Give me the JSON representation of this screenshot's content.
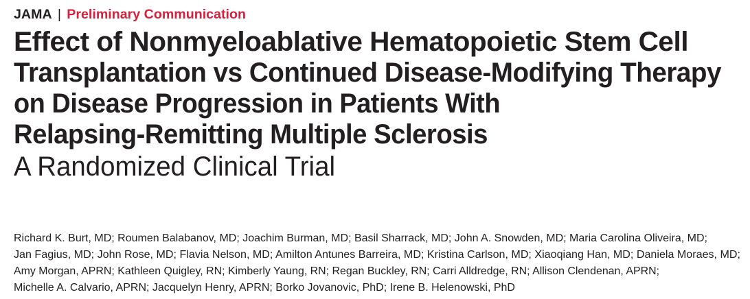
{
  "header": {
    "journal": "JAMA",
    "separator": "|",
    "category": "Preliminary Communication",
    "category_color": "#d4213d"
  },
  "title_lines": [
    "Effect of Nonmyeloablative Hematopoietic Stem Cell",
    "Transplantation vs Continued Disease-Modifying Therapy",
    "on Disease Progression in Patients With",
    "Relapsing-Remitting Multiple Sclerosis"
  ],
  "subtitle": "A Randomized Clinical Trial",
  "author_lines": [
    "Richard K. Burt, MD; Roumen Balabanov, MD; Joachim Burman, MD; Basil Sharrack, MD; John A. Snowden, MD; Maria Carolina Oliveira, MD;",
    "Jan Fagius, MD; John Rose, MD; Flavia Nelson, MD; Amilton Antunes Barreira, MD; Kristina Carlson, MD; Xiaoqiang Han, MD; Daniela Moraes, MD;",
    "Amy Morgan, APRN; Kathleen Quigley, RN; Kimberly Yaung, RN; Regan Buckley, RN; Carri Alldredge, RN; Allison Clendenan, APRN;",
    "Michelle A. Calvario, APRN; Jacquelyn Henry, APRN; Borko Jovanovic, PhD; Irene B. Helenowski, PhD"
  ]
}
